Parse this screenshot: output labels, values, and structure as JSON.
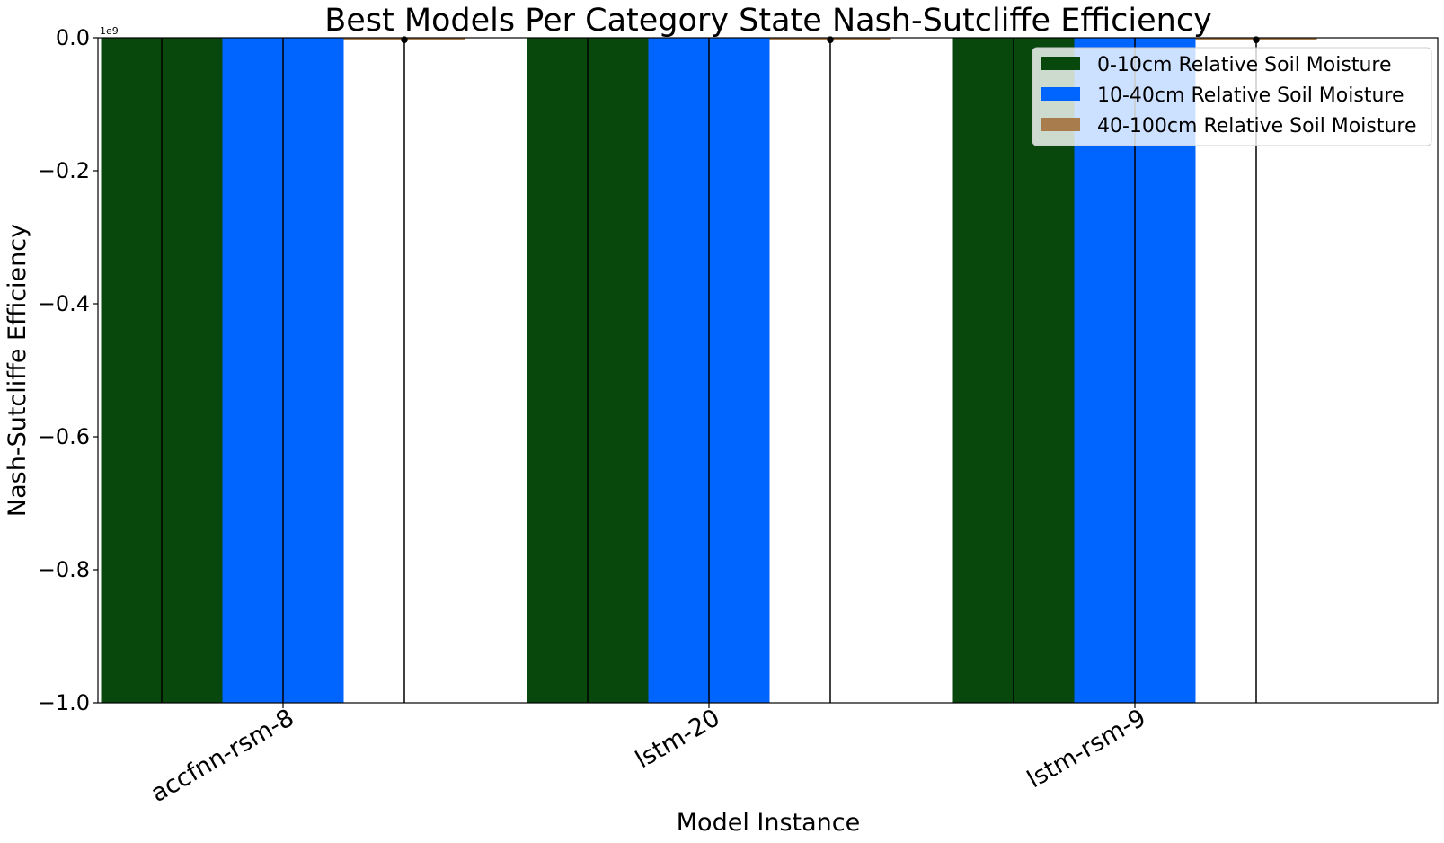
{
  "chart_data": {
    "type": "bar",
    "title": "Best Models Per Category State Nash-Sutcliffe Efficiency",
    "xlabel": "Model Instance",
    "ylabel": "Nash-Sutcliffe Efficiency",
    "y_offset_label": "1e9",
    "y_scale_multiplier": 1000000000,
    "ylim": [
      -1.0,
      0.0
    ],
    "yticks": [
      0.0,
      -0.2,
      -0.4,
      -0.6,
      -0.8,
      -1.0
    ],
    "ytick_labels": [
      "0.0",
      "−0.2",
      "−0.4",
      "−0.6",
      "−0.8",
      "−1.0"
    ],
    "grid": false,
    "legend_position": "top-right",
    "categories": [
      "accfnn-rsm-8",
      "lstm-20",
      "lstm-rsm-9"
    ],
    "series": [
      {
        "name": "0-10cm Relative Soil Moisture",
        "color": "#08480d",
        "values": [
          -1.0,
          -1.0,
          -1.0
        ],
        "error_low": [
          -1.0,
          -1.0,
          -1.0
        ],
        "error_high": [
          0.0,
          0.0,
          0.0
        ]
      },
      {
        "name": "10-40cm Relative Soil Moisture",
        "color": "#0064ff",
        "values": [
          -1.0,
          -1.0,
          -1.0
        ],
        "error_low": [
          -1.0,
          -1.0,
          -1.0
        ],
        "error_high": [
          0.0,
          0.0,
          0.0
        ]
      },
      {
        "name": "40-100cm Relative Soil Moisture",
        "color": "#a87c4c",
        "values": [
          -0.003,
          -0.003,
          -0.003
        ],
        "error_low": [
          -1.0,
          -1.0,
          -1.0
        ],
        "error_high": [
          -0.003,
          -0.003,
          -0.003
        ]
      }
    ]
  }
}
